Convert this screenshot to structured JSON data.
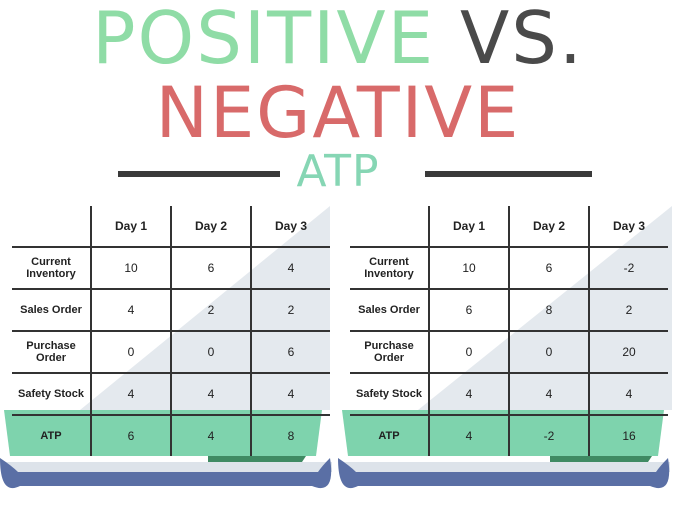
{
  "title": {
    "line1_part1": "POSITIVE",
    "line1_part2": "VS.",
    "line2": "NEGATIVE",
    "line3": "ATP"
  },
  "colors": {
    "positive": "#8fdca6",
    "vs": "#4a4a4a",
    "negative": "#d86a6a",
    "atp_accent": "#86d6b4",
    "atp_row_fill": "#7ed3ad",
    "negative_value": "#c94a4a",
    "tray": "#5a6fa5"
  },
  "tables": [
    {
      "headers": [
        "",
        "Day 1",
        "Day 2",
        "Day 3"
      ],
      "rows": [
        {
          "label": "Current Inventory",
          "values": [
            "10",
            "6",
            "4"
          ]
        },
        {
          "label": "Sales Order",
          "values": [
            "4",
            "2",
            "2"
          ]
        },
        {
          "label": "Purchase Order",
          "values": [
            "0",
            "0",
            "6"
          ]
        },
        {
          "label": "Safety Stock",
          "values": [
            "4",
            "4",
            "4"
          ]
        },
        {
          "label": "ATP",
          "values": [
            "6",
            "4",
            "8"
          ]
        }
      ]
    },
    {
      "headers": [
        "",
        "Day 1",
        "Day 2",
        "Day 3"
      ],
      "rows": [
        {
          "label": "Current Inventory",
          "values": [
            "10",
            "6",
            "-2"
          ]
        },
        {
          "label": "Sales Order",
          "values": [
            "6",
            "8",
            "2"
          ]
        },
        {
          "label": "Purchase Order",
          "values": [
            "0",
            "0",
            "20"
          ]
        },
        {
          "label": "Safety Stock",
          "values": [
            "4",
            "4",
            "4"
          ]
        },
        {
          "label": "ATP",
          "values": [
            "4",
            "-2",
            "16"
          ]
        }
      ]
    }
  ]
}
